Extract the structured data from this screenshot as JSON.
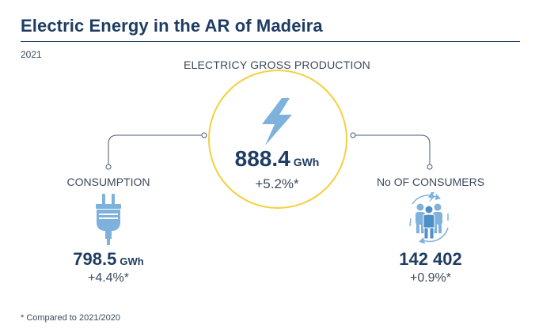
{
  "header": {
    "title": "Electric Energy in the AR of Madeira",
    "year": "2021"
  },
  "production": {
    "label": "ELECTRICY GROSS PRODUCTION",
    "value": "888.4",
    "unit": "GWh",
    "change": "+5.2%*",
    "icon": "lightning-bolt-icon"
  },
  "consumption": {
    "label": "CONSUMPTION",
    "value": "798.5",
    "unit": "GWh",
    "change": "+4.4%*",
    "icon": "electric-plug-icon"
  },
  "consumers": {
    "label": "No OF CONSUMERS",
    "value": "142 402",
    "change": "+0.9%*",
    "icon": "consumers-group-icon"
  },
  "footnote": "* Compared to 2021/2020",
  "colors": {
    "navy": "#1f3d63",
    "accent_blue": "#7eb2dc",
    "circle_yellow": "#f4d03f",
    "connector": "#4a5a6e"
  }
}
